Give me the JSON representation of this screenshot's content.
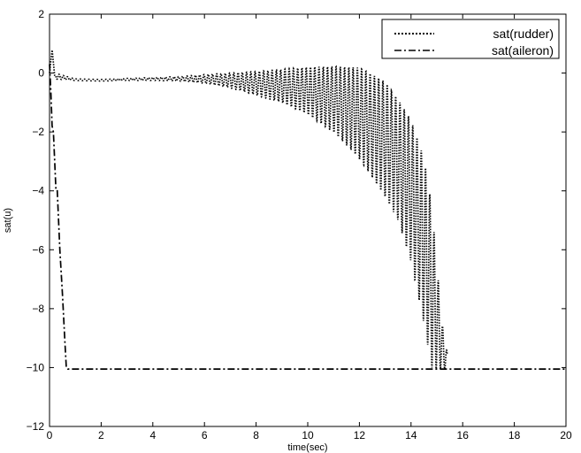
{
  "chart_data": {
    "type": "line",
    "title": "",
    "xlabel": "time(sec)",
    "ylabel": "sat(u)",
    "xlim": [
      0,
      20
    ],
    "ylim": [
      -12,
      2
    ],
    "xticks": [
      0,
      2,
      4,
      6,
      8,
      10,
      12,
      14,
      16,
      18,
      20
    ],
    "yticks": [
      -12,
      -10,
      -8,
      -6,
      -4,
      -2,
      0,
      2
    ],
    "xtick_labels": [
      "0",
      "2",
      "4",
      "6",
      "8",
      "10",
      "12",
      "14",
      "16",
      "18",
      "20"
    ],
    "ytick_labels": [
      "−12",
      "−10",
      "−8",
      "−6",
      "−4",
      "−2",
      "0",
      "2"
    ],
    "grid": false,
    "legend_position": "top-right",
    "series": [
      {
        "name": "sat(rudder)",
        "style": "dotted",
        "color": "#000000",
        "mean": [
          [
            0,
            0.0
          ],
          [
            0.1,
            0.8
          ],
          [
            0.2,
            -0.1
          ],
          [
            1,
            -0.22
          ],
          [
            2,
            -0.25
          ],
          [
            3,
            -0.22
          ],
          [
            4,
            -0.2
          ],
          [
            5,
            -0.2
          ],
          [
            6,
            -0.22
          ],
          [
            7,
            -0.25
          ],
          [
            8,
            -0.35
          ],
          [
            9,
            -0.5
          ],
          [
            10,
            -0.75
          ],
          [
            11,
            -1.05
          ],
          [
            12,
            -1.5
          ],
          [
            13,
            -2.2
          ],
          [
            13.5,
            -2.8
          ],
          [
            14,
            -3.7
          ],
          [
            14.5,
            -5.2
          ],
          [
            14.8,
            -6.8
          ],
          [
            15.0,
            -8.8
          ],
          [
            15.2,
            -10.05
          ],
          [
            15.4,
            -10.05
          ]
        ],
        "envelope": [
          [
            0,
            0,
            0
          ],
          [
            0.2,
            -0.2,
            0
          ],
          [
            1,
            -0.25,
            -0.2
          ],
          [
            2,
            -0.27,
            -0.22
          ],
          [
            3,
            -0.25,
            -0.18
          ],
          [
            4,
            -0.25,
            -0.15
          ],
          [
            5,
            -0.27,
            -0.12
          ],
          [
            6,
            -0.35,
            -0.05
          ],
          [
            7,
            -0.5,
            0.0
          ],
          [
            8,
            -0.75,
            0.05
          ],
          [
            9,
            -1.0,
            0.12
          ],
          [
            10,
            -1.4,
            0.2
          ],
          [
            11,
            -2.0,
            0.22
          ],
          [
            12,
            -2.9,
            0.18
          ],
          [
            13,
            -4.2,
            -0.3
          ],
          [
            13.5,
            -5.0,
            -0.9
          ],
          [
            14,
            -6.4,
            -1.6
          ],
          [
            14.5,
            -8.5,
            -2.9
          ],
          [
            14.8,
            -10.0,
            -4.5
          ],
          [
            15.0,
            -10.05,
            -6.5
          ],
          [
            15.2,
            -10.05,
            -8.5
          ],
          [
            15.4,
            -10.05,
            -9.5
          ]
        ]
      },
      {
        "name": "sat(aileron)",
        "style": "dash-dot",
        "color": "#000000",
        "x": [
          0,
          0.05,
          0.1,
          0.15,
          0.2,
          0.25,
          0.3,
          0.4,
          0.5,
          0.6,
          0.65,
          0.7,
          2,
          4,
          6,
          8,
          10,
          12,
          14,
          16,
          18,
          20
        ],
        "y": [
          0.3,
          -0.6,
          -1.8,
          -2.0,
          -3.0,
          -4.0,
          -4.0,
          -6.0,
          -7.5,
          -9.2,
          -10.0,
          -10.05,
          -10.05,
          -10.05,
          -10.05,
          -10.05,
          -10.05,
          -10.05,
          -10.05,
          -10.05,
          -10.05,
          -10.05
        ]
      }
    ]
  }
}
